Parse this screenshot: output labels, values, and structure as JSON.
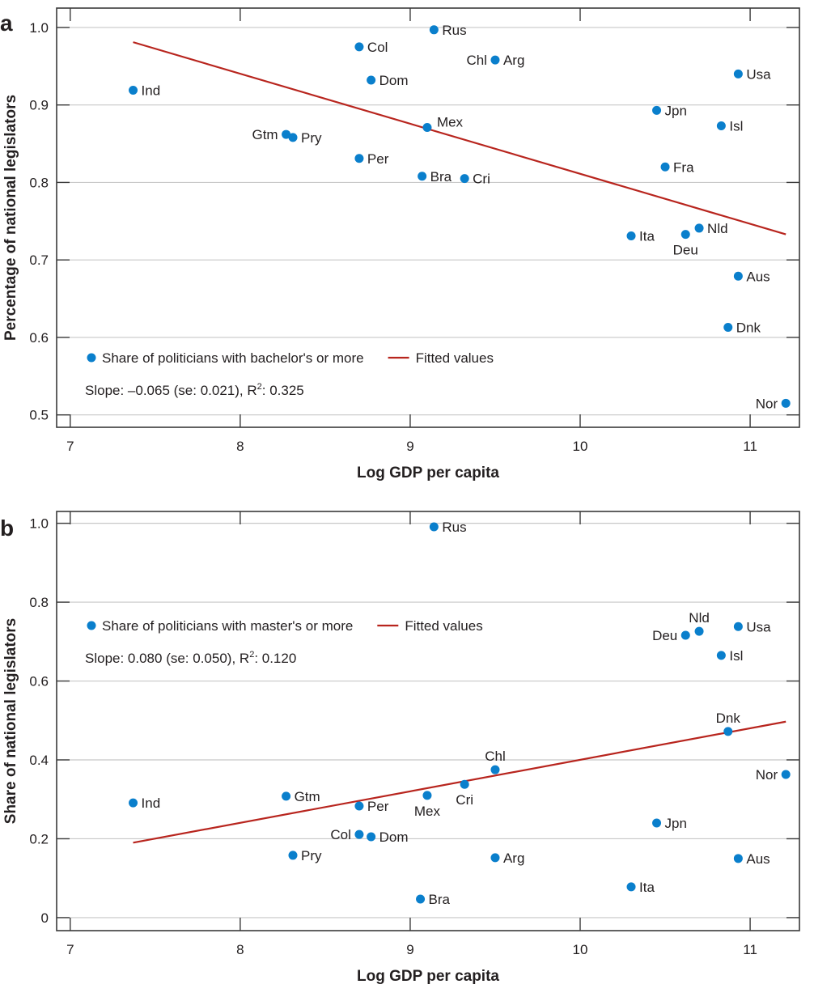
{
  "colors": {
    "point": "#0a7fcc",
    "fit": "#b8251e"
  },
  "chart_data": [
    {
      "panel": "a",
      "type": "scatter",
      "title": "",
      "xlabel": "Log GDP per capita",
      "ylabel": "Percentage of national legislators",
      "xlim": [
        6.92,
        11.29
      ],
      "ylim": [
        0.484,
        1.025
      ],
      "xticks": [
        7,
        8,
        9,
        10,
        11
      ],
      "xtick_labels": [
        "7",
        "8",
        "9",
        "10",
        "11"
      ],
      "yticks": [
        0.5,
        0.6,
        0.7,
        0.8,
        0.9,
        1.0
      ],
      "ytick_labels": [
        "0.5",
        "0.6",
        "0.7",
        "0.8",
        "0.9",
        "1.0"
      ],
      "grid": "horizontal",
      "legend": {
        "placement": "bottom-left",
        "points_label": "Share of politicians with bachelor's or more",
        "fit_label": "Fitted values"
      },
      "annotation": {
        "prefix": "Slope: –0.065 (se: 0.021), R",
        "sup": "2",
        "suffix": ": 0.325"
      },
      "fit": {
        "x": [
          7.37,
          11.21
        ],
        "y": [
          0.981,
          0.733
        ]
      },
      "points": [
        {
          "label": "Ind",
          "x": 7.37,
          "y": 0.919,
          "side": "right"
        },
        {
          "label": "Col",
          "x": 8.7,
          "y": 0.975,
          "side": "right"
        },
        {
          "label": "Dom",
          "x": 8.77,
          "y": 0.932,
          "side": "right"
        },
        {
          "label": "Rus",
          "x": 9.14,
          "y": 0.997,
          "side": "right"
        },
        {
          "label": "Chl",
          "x": 9.5,
          "y": 0.958,
          "side": "left"
        },
        {
          "label": "Arg",
          "x": 9.5,
          "y": 0.958,
          "side": "right"
        },
        {
          "label": "Gtm",
          "x": 8.27,
          "y": 0.862,
          "side": "left"
        },
        {
          "label": "Pry",
          "x": 8.31,
          "y": 0.858,
          "side": "right"
        },
        {
          "label": "Mex",
          "x": 9.1,
          "y": 0.871,
          "side": "above-right"
        },
        {
          "label": "Per",
          "x": 8.7,
          "y": 0.831,
          "side": "right"
        },
        {
          "label": "Bra",
          "x": 9.07,
          "y": 0.808,
          "side": "right"
        },
        {
          "label": "Cri",
          "x": 9.32,
          "y": 0.805,
          "side": "right"
        },
        {
          "label": "Usa",
          "x": 10.93,
          "y": 0.94,
          "side": "right"
        },
        {
          "label": "Jpn",
          "x": 10.45,
          "y": 0.893,
          "side": "right"
        },
        {
          "label": "Isl",
          "x": 10.83,
          "y": 0.873,
          "side": "right"
        },
        {
          "label": "Fra",
          "x": 10.5,
          "y": 0.82,
          "side": "right"
        },
        {
          "label": "Ita",
          "x": 10.3,
          "y": 0.731,
          "side": "right"
        },
        {
          "label": "Deu",
          "x": 10.62,
          "y": 0.733,
          "side": "below"
        },
        {
          "label": "Nld",
          "x": 10.7,
          "y": 0.741,
          "side": "right"
        },
        {
          "label": "Aus",
          "x": 10.93,
          "y": 0.679,
          "side": "right"
        },
        {
          "label": "Dnk",
          "x": 10.87,
          "y": 0.613,
          "side": "right"
        },
        {
          "label": "Nor",
          "x": 11.21,
          "y": 0.515,
          "side": "left"
        }
      ]
    },
    {
      "panel": "b",
      "type": "scatter",
      "title": "",
      "xlabel": "Log GDP per capita",
      "ylabel": "Share of national legislators",
      "xlim": [
        6.92,
        11.29
      ],
      "ylim": [
        -0.033,
        1.03
      ],
      "xticks": [
        7,
        8,
        9,
        10,
        11
      ],
      "xtick_labels": [
        "7",
        "8",
        "9",
        "10",
        "11"
      ],
      "yticks": [
        0,
        0.2,
        0.4,
        0.6,
        0.8,
        1.0
      ],
      "ytick_labels": [
        "0",
        "0.2",
        "0.4",
        "0.6",
        "0.8",
        "1.0"
      ],
      "grid": "horizontal",
      "legend": {
        "placement": "top-left",
        "points_label": "Share of politicians with master's or more",
        "fit_label": "Fitted values"
      },
      "annotation": {
        "prefix": "Slope: 0.080 (se: 0.050), R",
        "sup": "2",
        "suffix": ": 0.120"
      },
      "fit": {
        "x": [
          7.37,
          11.21
        ],
        "y": [
          0.19,
          0.497
        ]
      },
      "points": [
        {
          "label": "Rus",
          "x": 9.14,
          "y": 0.991,
          "side": "right"
        },
        {
          "label": "Deu",
          "x": 10.62,
          "y": 0.716,
          "side": "left"
        },
        {
          "label": "Nld",
          "x": 10.7,
          "y": 0.726,
          "side": "above"
        },
        {
          "label": "Usa",
          "x": 10.93,
          "y": 0.738,
          "side": "right"
        },
        {
          "label": "Isl",
          "x": 10.83,
          "y": 0.665,
          "side": "right"
        },
        {
          "label": "Dnk",
          "x": 10.87,
          "y": 0.472,
          "side": "above"
        },
        {
          "label": "Nor",
          "x": 11.21,
          "y": 0.363,
          "side": "left"
        },
        {
          "label": "Chl",
          "x": 9.5,
          "y": 0.375,
          "side": "above"
        },
        {
          "label": "Cri",
          "x": 9.32,
          "y": 0.338,
          "side": "below"
        },
        {
          "label": "Mex",
          "x": 9.1,
          "y": 0.31,
          "side": "below"
        },
        {
          "label": "Gtm",
          "x": 8.27,
          "y": 0.308,
          "side": "right"
        },
        {
          "label": "Ind",
          "x": 7.37,
          "y": 0.291,
          "side": "right"
        },
        {
          "label": "Per",
          "x": 8.7,
          "y": 0.283,
          "side": "right"
        },
        {
          "label": "Col",
          "x": 8.7,
          "y": 0.211,
          "side": "left"
        },
        {
          "label": "Dom",
          "x": 8.77,
          "y": 0.205,
          "side": "right"
        },
        {
          "label": "Jpn",
          "x": 10.45,
          "y": 0.24,
          "side": "right"
        },
        {
          "label": "Pry",
          "x": 8.31,
          "y": 0.158,
          "side": "right"
        },
        {
          "label": "Arg",
          "x": 9.5,
          "y": 0.152,
          "side": "right"
        },
        {
          "label": "Aus",
          "x": 10.93,
          "y": 0.15,
          "side": "right"
        },
        {
          "label": "Ita",
          "x": 10.3,
          "y": 0.078,
          "side": "right"
        },
        {
          "label": "Bra",
          "x": 9.06,
          "y": 0.047,
          "side": "right"
        }
      ]
    }
  ]
}
